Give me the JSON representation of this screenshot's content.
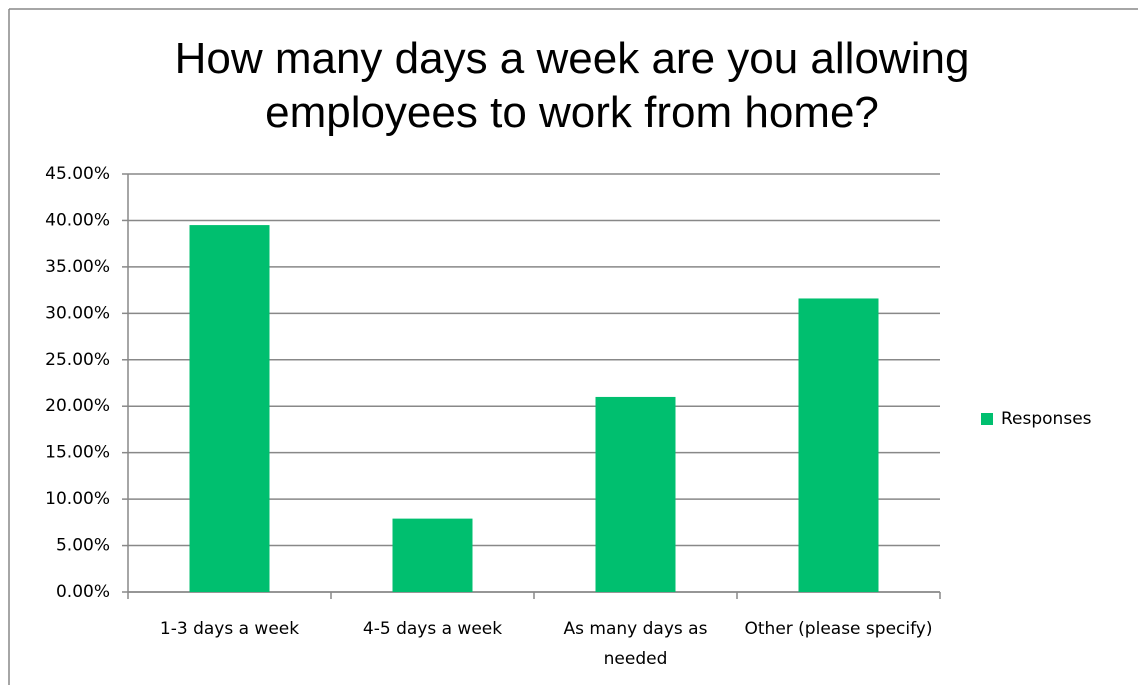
{
  "chart_data": {
    "type": "bar",
    "title": "How many days a week are you allowing employees to work from home?",
    "categories": [
      "1-3 days a week",
      "4-5 days a week",
      "As many days as needed",
      "Other (please specify)"
    ],
    "series": [
      {
        "name": "Responses",
        "color": "#00bf6f",
        "values": [
          39.5,
          7.9,
          21.0,
          31.6
        ]
      }
    ],
    "ylim": [
      0,
      45
    ],
    "yticks": [
      {
        "value": 0,
        "label": "0.00%"
      },
      {
        "value": 5,
        "label": "5.00%"
      },
      {
        "value": 10,
        "label": "10.00%"
      },
      {
        "value": 15,
        "label": "15.00%"
      },
      {
        "value": 20,
        "label": "20.00%"
      },
      {
        "value": 25,
        "label": "25.00%"
      },
      {
        "value": 30,
        "label": "30.00%"
      },
      {
        "value": 35,
        "label": "35.00%"
      },
      {
        "value": 40,
        "label": "40.00%"
      },
      {
        "value": 45,
        "label": "45.00%"
      }
    ],
    "grid": true,
    "legend": "right"
  }
}
